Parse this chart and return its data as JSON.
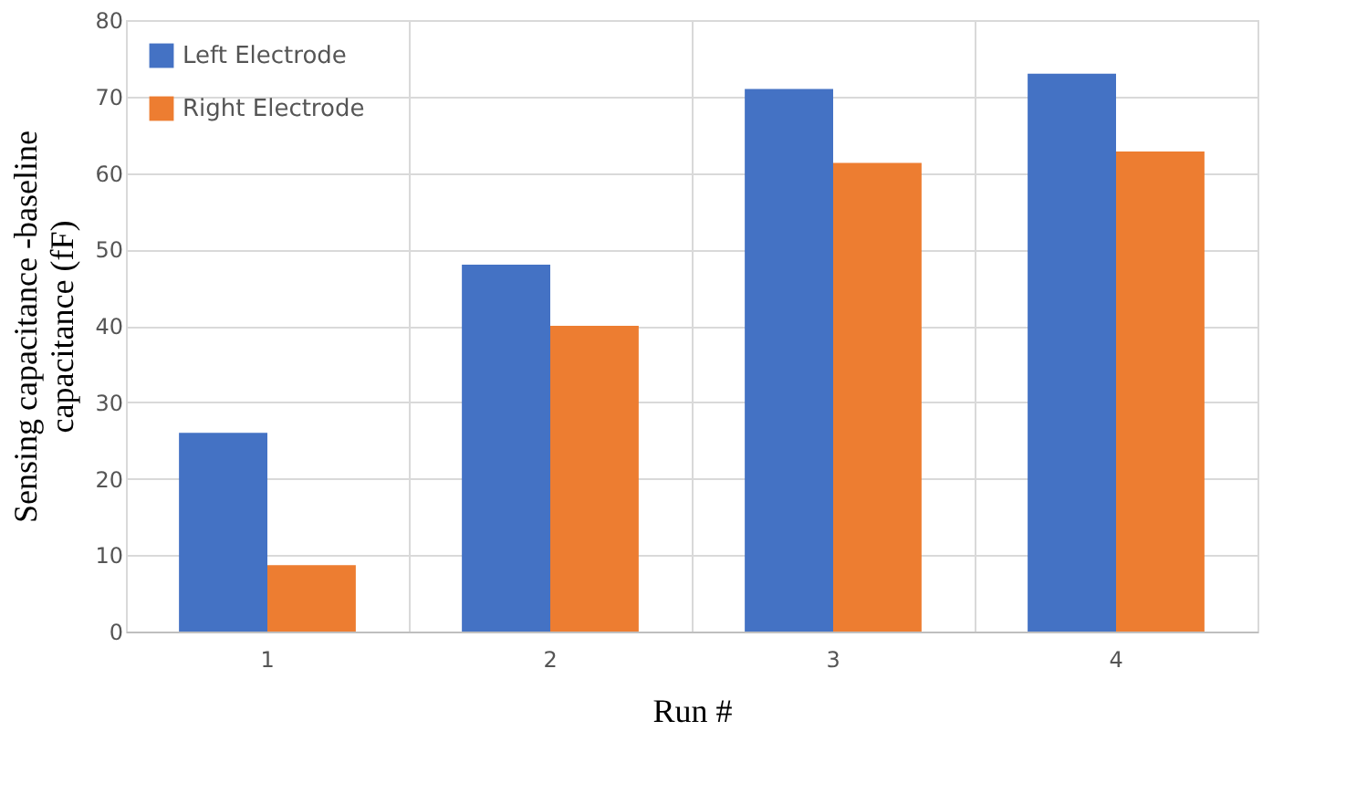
{
  "chart_data": {
    "type": "bar",
    "xlabel": "Run #",
    "ylabel": "Sensing capacitance -baseline\ncapacitance (fF)",
    "categories": [
      "1",
      "2",
      "3",
      "4"
    ],
    "series": [
      {
        "name": "Left Electrode",
        "color": "#4472c4",
        "values": [
          26,
          48,
          71,
          73
        ]
      },
      {
        "name": "Right Electrode",
        "color": "#ed7d31",
        "values": [
          8.7,
          40,
          61.3,
          62.8
        ]
      }
    ],
    "ylim": [
      0,
      80
    ],
    "yticks": [
      0,
      10,
      20,
      30,
      40,
      50,
      60,
      70,
      80
    ],
    "grid": true,
    "legend": "top left"
  }
}
